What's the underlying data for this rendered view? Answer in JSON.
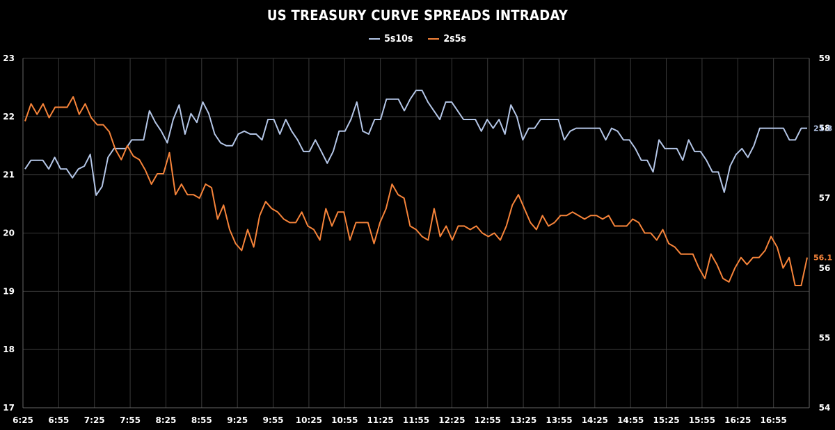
{
  "chart_data": {
    "type": "line",
    "title": "US TREASURY CURVE SPREADS INTRADAY",
    "xlabel": "",
    "ylabel_left": "",
    "ylabel_right": "",
    "x_tick_labels": [
      "6:25",
      "6:55",
      "7:25",
      "7:55",
      "8:25",
      "8:55",
      "9:25",
      "9:55",
      "10:25",
      "10:55",
      "11:25",
      "11:55",
      "12:25",
      "12:55",
      "13:25",
      "13:55",
      "14:25",
      "14:55",
      "15:25",
      "15:55",
      "16:25",
      "16:55"
    ],
    "y_left": {
      "ticks": [
        "17",
        "18",
        "19",
        "20",
        "21",
        "22",
        "23"
      ],
      "lim": [
        17,
        23
      ]
    },
    "y_right": {
      "ticks": [
        "54",
        "55",
        "56",
        "57",
        "58",
        "59"
      ],
      "lim": [
        54,
        59
      ]
    },
    "grid": true,
    "legend_position": "top-center",
    "series": [
      {
        "name": "5s10s",
        "axis": "left",
        "color": "#b4c6e7",
        "last_label": "21.8",
        "values": [
          21.1,
          21.25,
          21.25,
          21.25,
          21.1,
          21.3,
          21.1,
          21.1,
          20.95,
          21.1,
          21.15,
          21.35,
          20.65,
          20.8,
          21.3,
          21.45,
          21.45,
          21.45,
          21.6,
          21.6,
          21.6,
          22.1,
          21.9,
          21.75,
          21.55,
          21.95,
          22.2,
          21.7,
          22.05,
          21.9,
          22.25,
          22.05,
          21.7,
          21.55,
          21.5,
          21.5,
          21.7,
          21.75,
          21.7,
          21.7,
          21.6,
          21.95,
          21.95,
          21.7,
          21.95,
          21.75,
          21.6,
          21.4,
          21.4,
          21.6,
          21.4,
          21.2,
          21.4,
          21.75,
          21.75,
          21.95,
          22.25,
          21.75,
          21.7,
          21.95,
          21.95,
          22.3,
          22.3,
          22.3,
          22.1,
          22.3,
          22.45,
          22.45,
          22.25,
          22.1,
          21.95,
          22.25,
          22.25,
          22.1,
          21.95,
          21.95,
          21.95,
          21.75,
          21.95,
          21.8,
          21.95,
          21.7,
          22.2,
          22.0,
          21.6,
          21.8,
          21.8,
          21.95,
          21.95,
          21.95,
          21.95,
          21.6,
          21.75,
          21.8,
          21.8,
          21.8,
          21.8,
          21.8,
          21.6,
          21.8,
          21.75,
          21.6,
          21.6,
          21.45,
          21.25,
          21.25,
          21.05,
          21.6,
          21.45,
          21.45,
          21.45,
          21.25,
          21.6,
          21.4,
          21.4,
          21.25,
          21.05,
          21.05,
          20.7,
          21.15,
          21.35,
          21.45,
          21.3,
          21.5,
          21.8,
          21.8,
          21.8,
          21.8,
          21.8,
          21.6,
          21.6,
          21.8,
          21.8
        ]
      },
      {
        "name": "2s5s",
        "axis": "right",
        "color": "#f7843a",
        "last_label": "56.1",
        "values": [
          58.1,
          58.35,
          58.2,
          58.35,
          58.15,
          58.3,
          58.3,
          58.3,
          58.45,
          58.2,
          58.35,
          58.15,
          58.05,
          58.05,
          57.95,
          57.7,
          57.55,
          57.75,
          57.6,
          57.55,
          57.4,
          57.2,
          57.35,
          57.35,
          57.65,
          57.05,
          57.2,
          57.05,
          57.05,
          57.0,
          57.2,
          57.15,
          56.7,
          56.9,
          56.55,
          56.35,
          56.25,
          56.55,
          56.3,
          56.75,
          56.95,
          56.85,
          56.8,
          56.7,
          56.65,
          56.65,
          56.8,
          56.6,
          56.55,
          56.4,
          56.85,
          56.6,
          56.8,
          56.8,
          56.4,
          56.65,
          56.65,
          56.65,
          56.35,
          56.65,
          56.85,
          57.2,
          57.05,
          57.0,
          56.6,
          56.55,
          56.45,
          56.4,
          56.85,
          56.45,
          56.6,
          56.4,
          56.6,
          56.6,
          56.55,
          56.6,
          56.5,
          56.45,
          56.5,
          56.4,
          56.6,
          56.9,
          57.05,
          56.85,
          56.65,
          56.55,
          56.75,
          56.6,
          56.65,
          56.75,
          56.75,
          56.8,
          56.75,
          56.7,
          56.75,
          56.75,
          56.7,
          56.75,
          56.6,
          56.6,
          56.6,
          56.7,
          56.65,
          56.5,
          56.5,
          56.4,
          56.55,
          56.35,
          56.3,
          56.2,
          56.2,
          56.2,
          56.0,
          55.85,
          56.2,
          56.05,
          55.85,
          55.8,
          56.0,
          56.15,
          56.05,
          56.15,
          56.15,
          56.25,
          56.45,
          56.3,
          56.0,
          56.15,
          55.75,
          55.75,
          56.15
        ]
      }
    ]
  }
}
